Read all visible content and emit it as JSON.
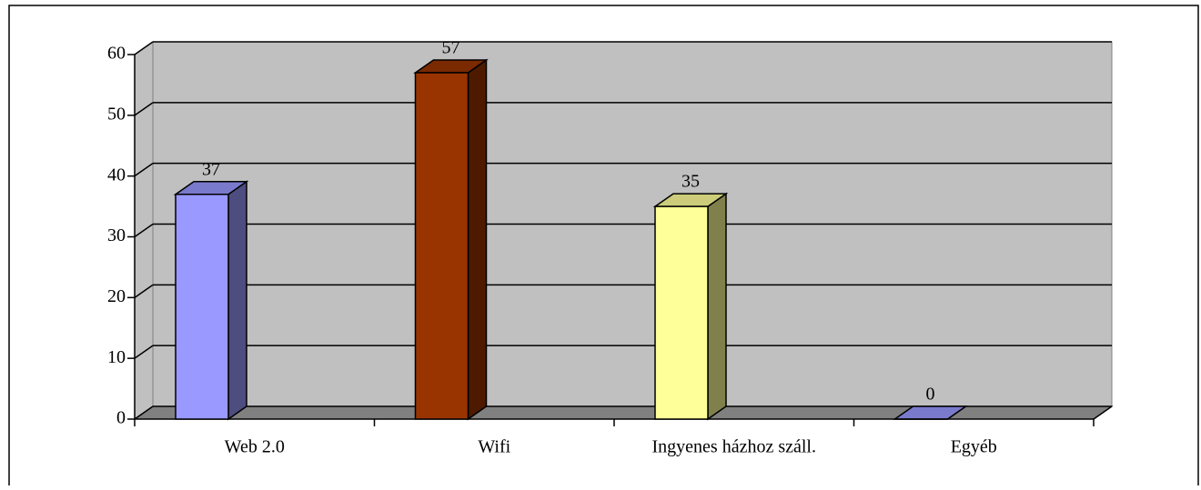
{
  "chart_data": {
    "type": "bar3d",
    "categories": [
      "Web 2.0",
      "Wifi",
      "Ingyenes házhoz száll.",
      "Egyéb"
    ],
    "values": [
      37,
      57,
      35,
      0
    ],
    "colors": [
      "#9999ff",
      "#993300",
      "#ffff99",
      "#9999ff"
    ],
    "ylim": [
      0,
      60
    ],
    "yticks": [
      0,
      10,
      20,
      30,
      40,
      50,
      60
    ],
    "grid": true
  }
}
